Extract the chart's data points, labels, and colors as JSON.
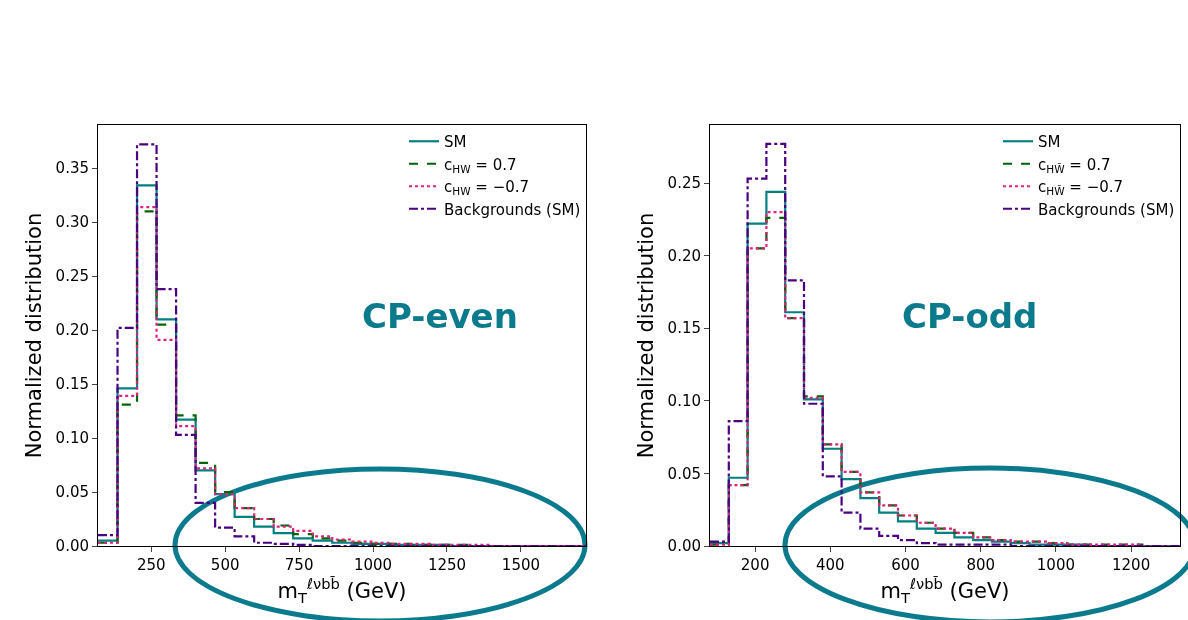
{
  "chart_data": [
    {
      "type": "histogram",
      "xlabel": "m$_{T}$$^{ℓνbb̄}$ (GeV)",
      "ylabel": "Normalized distribution",
      "annotations": [
        "CP-even"
      ],
      "legend": "top right",
      "grid": false,
      "bins": [
        70,
        136,
        202,
        268,
        334,
        400,
        466,
        532,
        598,
        664,
        730,
        796,
        862,
        928,
        994,
        1060,
        1126,
        1192,
        1258,
        1324,
        1390,
        1456,
        1522,
        1588,
        1654,
        1720
      ],
      "xlim": [
        70,
        1720
      ],
      "xticks": [
        250,
        500,
        750,
        1000,
        1250,
        1500
      ],
      "ylim": [
        0,
        0.39
      ],
      "yticks": [
        {
          "value": 0,
          "label": "0.00"
        },
        {
          "value": 0.05,
          "label": "0.05"
        },
        {
          "value": 0.1,
          "label": "0.10"
        },
        {
          "value": 0.15,
          "label": "0.15"
        },
        {
          "value": 0.2,
          "label": "0.20"
        },
        {
          "value": 0.25,
          "label": "0.25"
        },
        {
          "value": 0.3,
          "label": "0.30"
        },
        {
          "value": 0.35,
          "label": "0.35"
        }
      ],
      "series": [
        {
          "name": "SM",
          "color": "#008080",
          "line_style": "solid",
          "values": [
            0.005,
            0.146,
            0.334,
            0.21,
            0.117,
            0.07,
            0.048,
            0.027,
            0.018,
            0.012,
            0.007,
            0.005,
            0.003,
            0.002,
            0.002,
            0.001,
            0.001,
            0.001,
            0,
            0,
            0,
            0,
            0,
            0,
            0
          ]
        },
        {
          "name": "c$_{HW}$ = 0.7",
          "color": "#006400",
          "line_style": "dashed",
          "values": [
            0.003,
            0.131,
            0.31,
            0.205,
            0.121,
            0.077,
            0.05,
            0.035,
            0.025,
            0.019,
            0.011,
            0.007,
            0.005,
            0.003,
            0.002,
            0.002,
            0.001,
            0.001,
            0.001,
            0,
            0,
            0,
            0,
            0,
            0
          ]
        },
        {
          "name": "c$_{HW}$ = −0.7",
          "color": "#e0207f",
          "line_style": "dotted",
          "values": [
            0.003,
            0.139,
            0.314,
            0.191,
            0.111,
            0.072,
            0.048,
            0.035,
            0.025,
            0.018,
            0.014,
            0.009,
            0.006,
            0.004,
            0.003,
            0.002,
            0.002,
            0.001,
            0.001,
            0.001,
            0,
            0,
            0,
            0,
            0
          ]
        },
        {
          "name": "Backgrounds (SM)",
          "color": "#4b0082",
          "line_style": "dashdot",
          "values": [
            0.01,
            0.202,
            0.372,
            0.238,
            0.103,
            0.04,
            0.017,
            0.009,
            0.003,
            0.002,
            0.001,
            0,
            0,
            0,
            0,
            0,
            0,
            0,
            0,
            0,
            0,
            0,
            0,
            0,
            0
          ]
        }
      ]
    },
    {
      "type": "histogram",
      "xlabel": "m$_{T}$$^{ℓνbb̄}$ (GeV)",
      "ylabel": "Normalized distribution",
      "annotations": [
        "CP-odd"
      ],
      "legend": "top right",
      "grid": false,
      "bins": [
        80,
        130,
        180,
        230,
        280,
        330,
        380,
        430,
        480,
        530,
        580,
        630,
        680,
        730,
        780,
        830,
        880,
        930,
        980,
        1030,
        1080,
        1130,
        1180,
        1230,
        1280,
        1330
      ],
      "xlim": [
        80,
        1330
      ],
      "xticks": [
        200,
        400,
        600,
        800,
        1000,
        1200
      ],
      "ylim": [
        0,
        0.29
      ],
      "yticks": [
        {
          "value": 0,
          "label": "0.00"
        },
        {
          "value": 0.05,
          "label": "0.05"
        },
        {
          "value": 0.1,
          "label": "0.10"
        },
        {
          "value": 0.15,
          "label": "0.15"
        },
        {
          "value": 0.2,
          "label": "0.20"
        },
        {
          "value": 0.25,
          "label": "0.25"
        }
      ],
      "series": [
        {
          "name": "SM",
          "color": "#008080",
          "line_style": "solid",
          "values": [
            0.002,
            0.047,
            0.222,
            0.244,
            0.161,
            0.101,
            0.067,
            0.046,
            0.033,
            0.023,
            0.017,
            0.012,
            0.009,
            0.006,
            0.004,
            0.003,
            0.002,
            0.001,
            0.001,
            0.001,
            0,
            0,
            0,
            0,
            0
          ]
        },
        {
          "name": "c$_{HW̃}$ = 0.7",
          "color": "#006400",
          "line_style": "dashed",
          "values": [
            0.001,
            0.042,
            0.205,
            0.226,
            0.157,
            0.103,
            0.07,
            0.051,
            0.037,
            0.028,
            0.021,
            0.016,
            0.012,
            0.009,
            0.006,
            0.004,
            0.003,
            0.003,
            0.002,
            0.001,
            0.001,
            0.001,
            0.001,
            0,
            0
          ]
        },
        {
          "name": "c$_{HW̃}$ = −0.7",
          "color": "#e0207f",
          "line_style": "dotted",
          "values": [
            0.001,
            0.042,
            0.205,
            0.23,
            0.157,
            0.102,
            0.07,
            0.051,
            0.037,
            0.028,
            0.021,
            0.016,
            0.012,
            0.009,
            0.006,
            0.004,
            0.003,
            0.003,
            0.002,
            0.001,
            0.001,
            0.001,
            0.001,
            0,
            0
          ]
        },
        {
          "name": "Backgrounds (SM)",
          "color": "#4b0082",
          "line_style": "dashdot",
          "values": [
            0.003,
            0.086,
            0.253,
            0.277,
            0.183,
            0.098,
            0.048,
            0.023,
            0.012,
            0.007,
            0.004,
            0.002,
            0.001,
            0.001,
            0.001,
            0.001,
            0,
            0,
            0,
            0,
            0,
            0,
            0,
            0,
            0
          ]
        }
      ]
    }
  ]
}
